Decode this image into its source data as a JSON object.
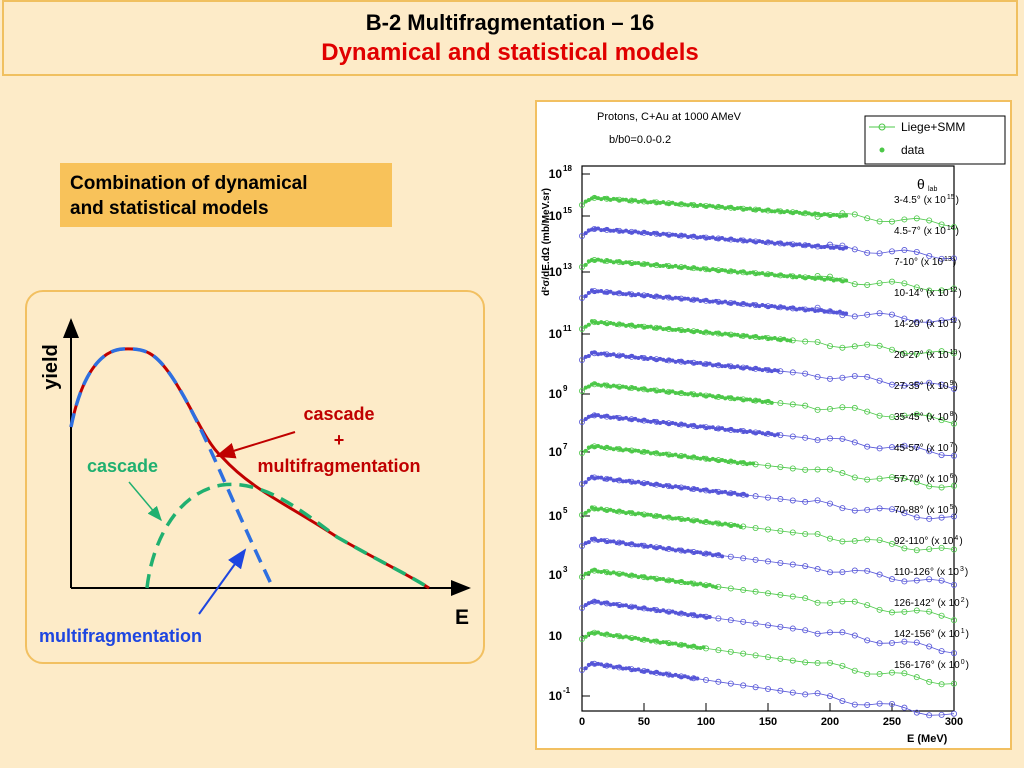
{
  "slide": {
    "title_line1": "B-2 Multifragmentation – 16",
    "title_line2": "Dynamical and statistical models",
    "callout": "Combination of dynamical and statistical models",
    "callout_line1": "Combination of dynamical",
    "callout_line2": "and statistical models"
  },
  "chart_data": [
    {
      "type": "line",
      "title": "",
      "xlabel": "E",
      "ylabel": "yield",
      "annotations": {
        "total_label_1": "cascade",
        "total_label_2": "+",
        "total_label_3": "multifragmentation",
        "cascade_label": "cascade",
        "multifrag_label": "multifragmentation"
      },
      "colors": {
        "total": "#c00000",
        "cascade_curve": "#2e6fe0",
        "multifrag_curve": "#20b070",
        "cascade_text": "#20b070",
        "multifrag_text": "#1e46e0",
        "total_text": "#c00000"
      }
    },
    {
      "type": "scatter",
      "title": "Protons, C+Au at 1000 AMeV",
      "subtitle": "b/b0=0.0-0.2",
      "xlabel": "E (MeV)",
      "ylabel": "d²σ/dE.dΩ (mb/MeV.sr)",
      "xlim": [
        0,
        300
      ],
      "x_ticks": [
        "0",
        "50",
        "100",
        "150",
        "200",
        "250",
        "300"
      ],
      "y_scale": "log",
      "y_ticks": [
        "10",
        "10",
        "10",
        "10",
        "10",
        "10",
        "10",
        "10",
        "10",
        "10"
      ],
      "y_tick_exponents": [
        "18",
        "15",
        "13",
        "11",
        "9",
        "7",
        "5",
        "3",
        "",
        "-1"
      ],
      "legend": {
        "model": "Liege+SMM",
        "data": "data"
      },
      "theta_header": "θ",
      "theta_sub": "lab",
      "colors": {
        "green": "#4cc848",
        "blue": "#5555d8"
      },
      "series": [
        {
          "angle": "3-4.5°",
          "factor": "(x 10",
          "exp": "15",
          "color": "green",
          "data_xmax": 215,
          "model_xmax": 300
        },
        {
          "angle": "4.5-7°",
          "factor": "(x 10",
          "exp": "14",
          "color": "blue",
          "data_xmax": 215,
          "model_xmax": 300
        },
        {
          "angle": "7-10°",
          "factor": "(x 10",
          "exp": "13",
          "color": "green",
          "data_xmax": 215,
          "model_xmax": 300
        },
        {
          "angle": "10-14°",
          "factor": "(x 10",
          "exp": "12",
          "color": "blue",
          "data_xmax": 215,
          "model_xmax": 300
        },
        {
          "angle": "14-20°",
          "factor": "(x 10",
          "exp": "11",
          "color": "green",
          "data_xmax": 170,
          "model_xmax": 300
        },
        {
          "angle": "20-27°",
          "factor": "(x 10",
          "exp": "10",
          "color": "blue",
          "data_xmax": 160,
          "model_xmax": 300
        },
        {
          "angle": "27-35°",
          "factor": "(x 10",
          "exp": "9",
          "color": "green",
          "data_xmax": 155,
          "model_xmax": 300
        },
        {
          "angle": "35-45°",
          "factor": "(x 10",
          "exp": "8",
          "color": "blue",
          "data_xmax": 160,
          "model_xmax": 300
        },
        {
          "angle": "45-57°",
          "factor": "(x 10",
          "exp": "7",
          "color": "green",
          "data_xmax": 140,
          "model_xmax": 300
        },
        {
          "angle": "57-70°",
          "factor": "(x 10",
          "exp": "6",
          "color": "blue",
          "data_xmax": 135,
          "model_xmax": 300
        },
        {
          "angle": "70-88°",
          "factor": "(x 10",
          "exp": "5",
          "color": "green",
          "data_xmax": 130,
          "model_xmax": 300
        },
        {
          "angle": "92-110°",
          "factor": "(x 10",
          "exp": "4",
          "color": "blue",
          "data_xmax": 115,
          "model_xmax": 300
        },
        {
          "angle": "110-126°",
          "factor": "(x 10",
          "exp": "3",
          "color": "green",
          "data_xmax": 110,
          "model_xmax": 300
        },
        {
          "angle": "126-142°",
          "factor": "(x 10",
          "exp": "2",
          "color": "blue",
          "data_xmax": 105,
          "model_xmax": 300
        },
        {
          "angle": "142-156°",
          "factor": "(x 10",
          "exp": "1",
          "color": "green",
          "data_xmax": 100,
          "model_xmax": 300
        },
        {
          "angle": "156-176°",
          "factor": "(x 10",
          "exp": "0",
          "color": "blue",
          "data_xmax": 95,
          "model_xmax": 300
        }
      ]
    }
  ]
}
